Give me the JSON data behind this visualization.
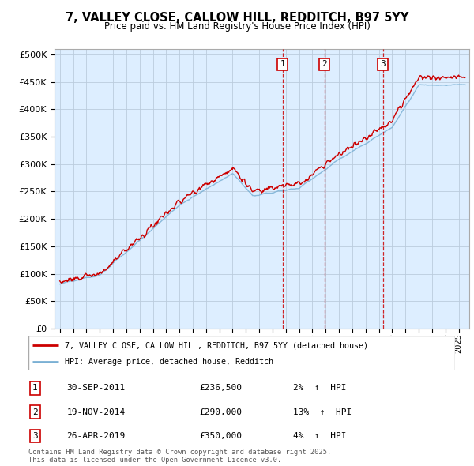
{
  "title": "7, VALLEY CLOSE, CALLOW HILL, REDDITCH, B97 5YY",
  "subtitle": "Price paid vs. HM Land Registry's House Price Index (HPI)",
  "ylabel_ticks": [
    "£0",
    "£50K",
    "£100K",
    "£150K",
    "£200K",
    "£250K",
    "£300K",
    "£350K",
    "£400K",
    "£450K",
    "£500K"
  ],
  "ytick_values": [
    0,
    50000,
    100000,
    150000,
    200000,
    250000,
    300000,
    350000,
    400000,
    450000,
    500000
  ],
  "ylim": [
    0,
    510000
  ],
  "sale_markers": [
    {
      "num": 1,
      "date": "30-SEP-2011",
      "price": 236500,
      "year": 2011.75,
      "pct": "2%",
      "dir": "↑"
    },
    {
      "num": 2,
      "date": "19-NOV-2014",
      "price": 290000,
      "year": 2014.9,
      "pct": "13%",
      "dir": "↑"
    },
    {
      "num": 3,
      "date": "26-APR-2019",
      "price": 350000,
      "year": 2019.3,
      "pct": "4%",
      "dir": "↑"
    }
  ],
  "legend_line1": "7, VALLEY CLOSE, CALLOW HILL, REDDITCH, B97 5YY (detached house)",
  "legend_line2": "HPI: Average price, detached house, Redditch",
  "footer": "Contains HM Land Registry data © Crown copyright and database right 2025.\nThis data is licensed under the Open Government Licence v3.0.",
  "line_color_red": "#cc0000",
  "line_color_blue": "#7ab0d4",
  "bg_fill": "#ddeeff",
  "grid_color": "#bbccdd",
  "box_color": "#cc0000"
}
